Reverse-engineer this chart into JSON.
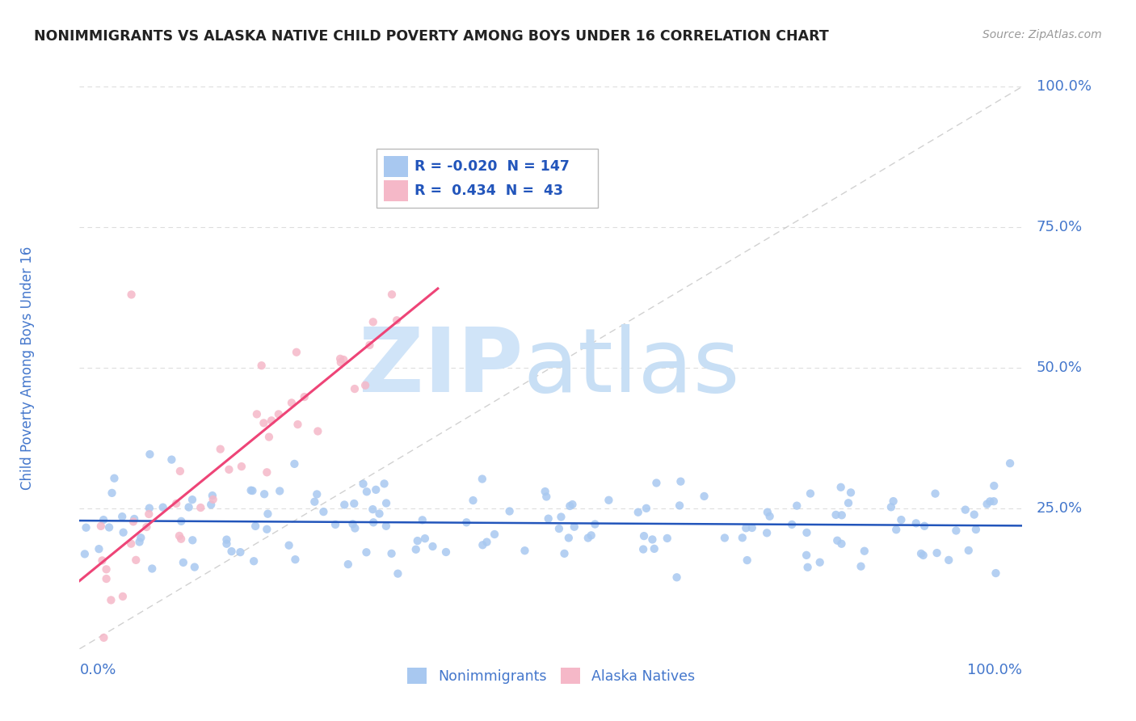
{
  "title": "NONIMMIGRANTS VS ALASKA NATIVE CHILD POVERTY AMONG BOYS UNDER 16 CORRELATION CHART",
  "source": "Source: ZipAtlas.com",
  "ylabel": "Child Poverty Among Boys Under 16",
  "legend_label1": "Nonimmigrants",
  "legend_label2": "Alaska Natives",
  "r1": -0.02,
  "n1": 147,
  "r2": 0.434,
  "n2": 43,
  "color_blue": "#A8C8F0",
  "color_blue_line": "#2255BB",
  "color_pink": "#F5B8C8",
  "color_pink_line": "#EE4477",
  "color_diagonal": "#CCCCCC",
  "background_color": "#FFFFFF",
  "grid_color": "#DDDDDD",
  "title_color": "#222222",
  "axis_label_color": "#4477CC",
  "watermark_zip_color": "#D0E4F8",
  "watermark_atlas_color": "#C8DFF5"
}
